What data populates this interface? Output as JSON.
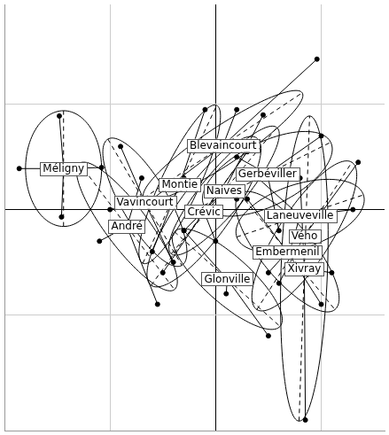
{
  "chart_data": {
    "type": "scatter",
    "xlim": [
      -2,
      1.6
    ],
    "ylim": [
      -2.1,
      1.95
    ],
    "xticks": [
      -1,
      0,
      1
    ],
    "yticks": [
      -1,
      0,
      1
    ],
    "grid": true,
    "tick_labels": false,
    "color": "#000000",
    "marker": "circle",
    "groups": [
      {
        "name": "Méligny",
        "center": [
          -1.44,
          0.39
        ],
        "points": [
          [
            -1.48,
            0.89
          ],
          [
            -1.86,
            0.39
          ],
          [
            -1.46,
            -0.07
          ],
          [
            -1.08,
            0.4
          ]
        ],
        "ellipse": {
          "major": [
            0,
            0.55
          ],
          "minor": 0.36
        }
      },
      {
        "name": "Blevaincourt",
        "center": [
          0.07,
          0.61
        ],
        "points": [
          [
            0.96,
            1.43
          ],
          [
            -0.6,
            0.1
          ],
          [
            0.2,
            0.95
          ]
        ],
        "ellipse": {
          "major": [
            0.75,
            0.5
          ],
          "minor": 0.18
        }
      },
      {
        "name": "Gerbéviller",
        "center": [
          0.49,
          0.34
        ],
        "points": [
          [
            1.0,
            0.7
          ],
          [
            0.2,
            0.5
          ],
          [
            0.6,
            -0.2
          ]
        ],
        "ellipse": {
          "major": [
            0.6,
            0.3
          ],
          "minor": 0.3
        }
      },
      {
        "name": "Naives",
        "center": [
          0.08,
          0.18
        ],
        "points": [
          [
            0.45,
            0.9
          ],
          [
            -0.3,
            -0.2
          ],
          [
            0.2,
            0.1
          ]
        ],
        "ellipse": {
          "major": [
            0.5,
            0.6
          ],
          "minor": 0.2
        }
      },
      {
        "name": "Montie",
        "center": [
          -0.34,
          0.24
        ],
        "points": [
          [
            -0.1,
            0.95
          ],
          [
            -0.6,
            -0.4
          ],
          [
            -0.3,
            0.3
          ]
        ],
        "ellipse": {
          "major": [
            0.35,
            0.75
          ],
          "minor": 0.18
        }
      },
      {
        "name": "Vavincourt",
        "center": [
          -0.67,
          0.07
        ],
        "points": [
          [
            -0.9,
            0.6
          ],
          [
            -0.4,
            -0.5
          ],
          [
            -1.0,
            0.0
          ]
        ],
        "ellipse": {
          "major": [
            0.35,
            -0.6
          ],
          "minor": 0.22
        }
      },
      {
        "name": "André",
        "center": [
          -0.84,
          -0.16
        ],
        "points": [
          [
            -1.1,
            -0.3
          ],
          [
            -0.55,
            -0.9
          ],
          [
            -0.7,
            0.3
          ]
        ],
        "ellipse": {
          "major": [
            0.45,
            -0.6
          ],
          "minor": 0.2
        }
      },
      {
        "name": "Crévic",
        "center": [
          -0.11,
          -0.02
        ],
        "points": [
          [
            0.3,
            0.55
          ],
          [
            -0.5,
            -0.6
          ],
          [
            0.0,
            -0.3
          ]
        ],
        "ellipse": {
          "major": [
            0.5,
            0.7
          ],
          "minor": 0.25
        }
      },
      {
        "name": "Laneuveville",
        "center": [
          0.8,
          -0.06
        ],
        "points": [
          [
            1.3,
            0.0
          ],
          [
            0.4,
            0.3
          ],
          [
            0.7,
            -0.4
          ]
        ],
        "ellipse": {
          "major": [
            0.6,
            0.2
          ],
          "minor": 0.3
        }
      },
      {
        "name": "Vého",
        "center": [
          0.84,
          -0.25
        ],
        "points": [
          [
            1.35,
            0.45
          ],
          [
            0.6,
            -0.7
          ],
          [
            0.9,
            -0.3
          ]
        ],
        "ellipse": {
          "major": [
            0.45,
            0.7
          ],
          "minor": 0.25
        }
      },
      {
        "name": "Embermenil",
        "center": [
          0.68,
          -0.4
        ],
        "points": [
          [
            0.3,
            0.1
          ],
          [
            1.0,
            -0.9
          ],
          [
            0.5,
            -0.6
          ]
        ],
        "ellipse": {
          "major": [
            0.45,
            -0.55
          ],
          "minor": 0.25
        }
      },
      {
        "name": "Xivray",
        "center": [
          0.84,
          -0.56
        ],
        "points": [
          [
            0.85,
            -2.0
          ],
          [
            0.8,
            0.3
          ],
          [
            1.1,
            -0.6
          ]
        ],
        "ellipse": {
          "major": [
            0.05,
            1.45
          ],
          "minor": 0.22
        }
      },
      {
        "name": "Glonville",
        "center": [
          0.11,
          -0.66
        ],
        "points": [
          [
            -0.3,
            -0.2
          ],
          [
            0.5,
            -1.2
          ],
          [
            0.1,
            -0.8
          ]
        ],
        "ellipse": {
          "major": [
            0.5,
            -0.45
          ],
          "minor": 0.22
        }
      }
    ]
  }
}
